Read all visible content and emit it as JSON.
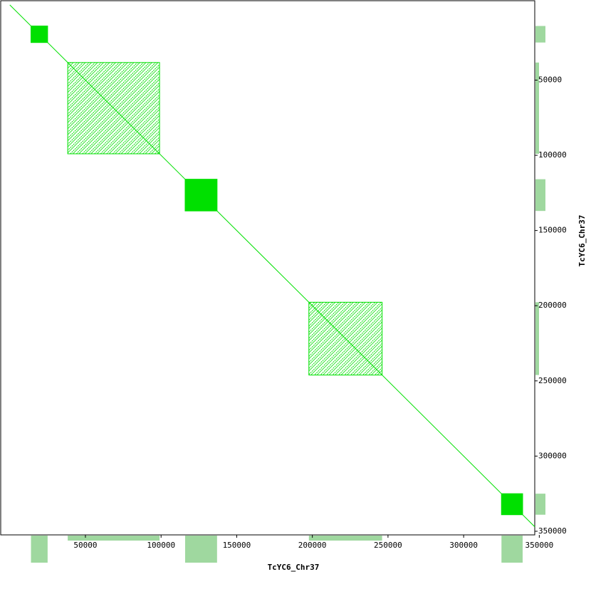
{
  "chart_data": {
    "type": "dotplot",
    "x_label": "TcYC6_Chr37",
    "y_label": "TcYC6_Chr37",
    "sequence_length": 347000,
    "xlim": [
      -6000,
      347000
    ],
    "ylim": [
      -2800,
      352400
    ],
    "xticks": [
      50000,
      100000,
      150000,
      200000,
      250000,
      300000,
      350000
    ],
    "yticks": [
      50000,
      100000,
      150000,
      200000,
      250000,
      300000,
      350000
    ],
    "color": "#00e000",
    "coverage_color": "#9fd89f",
    "blocks": [
      {
        "range": [
          14000,
          25000
        ],
        "style": "solid"
      },
      {
        "range": [
          38300,
          99000
        ],
        "style": "hatched"
      },
      {
        "range": [
          115900,
          137000
        ],
        "style": "solid"
      },
      {
        "range": [
          197700,
          246100
        ],
        "style": "hatched"
      },
      {
        "range": [
          325000,
          339000
        ],
        "style": "solid"
      }
    ]
  }
}
